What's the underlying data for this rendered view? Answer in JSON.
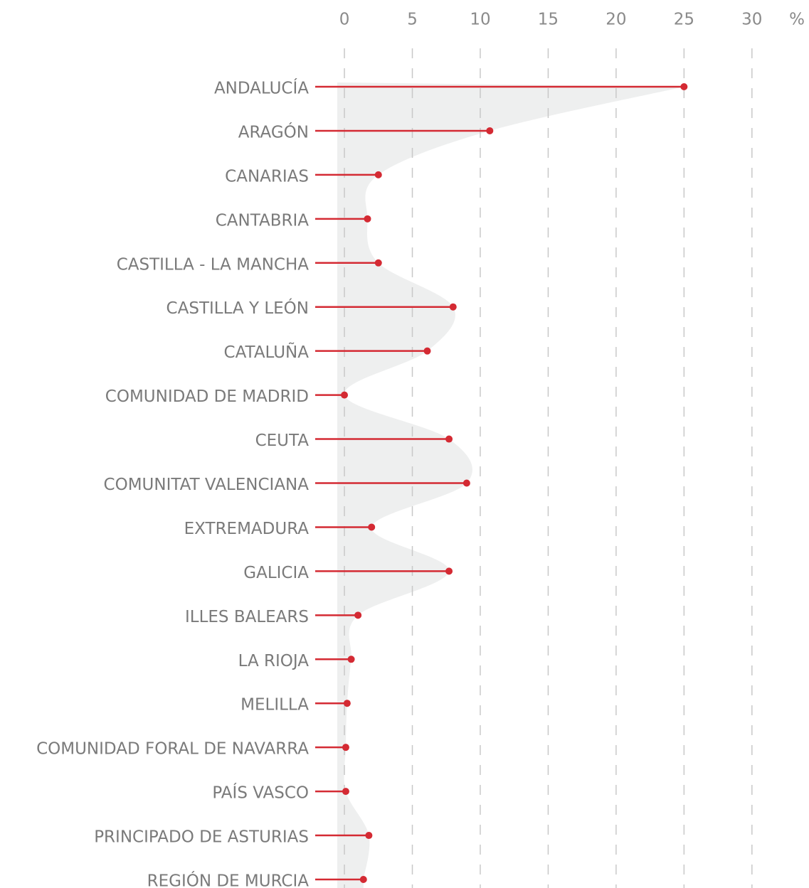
{
  "chart_data": {
    "type": "lollipop",
    "x_unit": "%",
    "categories": [
      "ANDALUCÍA",
      "ARAGÓN",
      "CANARIAS",
      "CANTABRIA",
      "CASTILLA - LA MANCHA",
      "CASTILLA Y LEÓN",
      "CATALUÑA",
      "COMUNIDAD DE MADRID",
      "CEUTA",
      "COMUNITAT VALENCIANA",
      "EXTREMADURA",
      "GALICIA",
      "ILLES BALEARS",
      "LA RIOJA",
      "MELILLA",
      "COMUNIDAD FORAL DE NAVARRA",
      "PAÍS VASCO",
      "PRINCIPADO DE ASTURIAS",
      "REGIÓN DE MURCIA"
    ],
    "values": [
      25.0,
      10.7,
      2.5,
      1.7,
      2.5,
      8.0,
      6.1,
      0.0,
      7.7,
      9.0,
      2.0,
      7.7,
      1.0,
      0.5,
      0.2,
      0.1,
      0.1,
      1.8,
      1.4
    ],
    "color": "#d42a33",
    "area_color": "#eeefef",
    "xlim": [
      -2.15,
      34.2
    ],
    "xticks": [
      0,
      5,
      10,
      15,
      20,
      25,
      30
    ],
    "grid": true
  }
}
